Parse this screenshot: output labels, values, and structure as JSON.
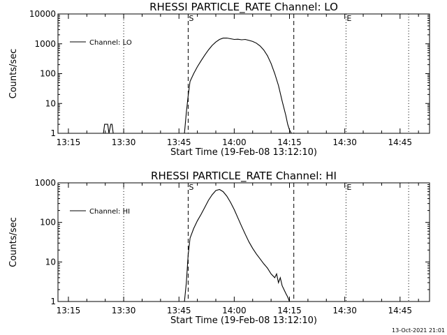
{
  "chart_data": [
    {
      "type": "line",
      "title": "RHESSI PARTICLE_RATE Channel: LO",
      "xlabel": "Start Time (19-Feb-08 13:12:10)",
      "ylabel": "Counts/sec",
      "yscale": "log",
      "xlim": [
        "13:12:10",
        "14:53:00"
      ],
      "ylim": [
        1,
        10000
      ],
      "x_ticks": [
        "13:15",
        "13:30",
        "13:45",
        "14:00",
        "14:15",
        "14:30",
        "14:45"
      ],
      "y_ticks": [
        "1",
        "10",
        "100",
        "1000",
        "10000"
      ],
      "legend_position": "upper-left",
      "series": [
        {
          "name": "Channel: LO",
          "x": [
            "13:24:30",
            "13:24:50",
            "13:25:40",
            "13:26:00",
            "13:26:30",
            "13:26:50",
            "13:27:10",
            "13:27:30",
            "13:46:30",
            "13:47:00",
            "13:47:30",
            "13:48:00",
            "13:49:00",
            "13:50:00",
            "13:51:00",
            "13:52:00",
            "13:53:00",
            "13:54:00",
            "13:55:00",
            "13:56:00",
            "13:57:00",
            "13:58:00",
            "13:59:00",
            "14:00:00",
            "14:01:00",
            "14:02:00",
            "14:03:00",
            "14:04:00",
            "14:05:00",
            "14:06:00",
            "14:07:00",
            "14:08:00",
            "14:09:00",
            "14:10:00",
            "14:11:00",
            "14:12:00",
            "14:13:00",
            "14:14:00",
            "14:14:30",
            "14:15:00",
            "14:15:30",
            "14:16:00"
          ],
          "y": [
            1,
            2,
            2,
            1,
            2,
            2,
            1,
            1,
            1,
            5,
            18,
            55,
            100,
            170,
            270,
            420,
            620,
            880,
            1150,
            1400,
            1550,
            1560,
            1480,
            1400,
            1420,
            1360,
            1400,
            1300,
            1200,
            1050,
            850,
            620,
            400,
            220,
            100,
            40,
            12,
            4,
            2,
            1.3,
            1,
            1
          ]
        }
      ],
      "markers": [
        {
          "label": "S",
          "time": "13:47:30",
          "style": "dashed"
        },
        {
          "label": "",
          "time": "14:16:10",
          "style": "dashed"
        },
        {
          "label": "E",
          "time": "14:30:20",
          "style": "dotted"
        },
        {
          "label": "",
          "time": "13:30:00",
          "style": "dotted"
        },
        {
          "label": "",
          "time": "14:47:20",
          "style": "dotted"
        }
      ]
    },
    {
      "type": "line",
      "title": "RHESSI PARTICLE_RATE Channel: HI",
      "xlabel": "Start Time (19-Feb-08 13:12:10)",
      "ylabel": "Counts/sec",
      "yscale": "log",
      "xlim": [
        "13:12:10",
        "14:53:00"
      ],
      "ylim": [
        1,
        1000
      ],
      "x_ticks": [
        "13:15",
        "13:30",
        "13:45",
        "14:00",
        "14:15",
        "14:30",
        "14:45"
      ],
      "y_ticks": [
        "1",
        "10",
        "100",
        "1000"
      ],
      "legend_position": "upper-left",
      "series": [
        {
          "name": "Channel: HI",
          "x": [
            "13:46:30",
            "13:47:00",
            "13:47:30",
            "13:48:00",
            "13:49:00",
            "13:50:00",
            "13:51:00",
            "13:52:00",
            "13:53:00",
            "13:54:00",
            "13:55:00",
            "13:56:00",
            "13:57:00",
            "13:58:00",
            "13:59:00",
            "14:00:00",
            "14:01:00",
            "14:02:00",
            "14:03:00",
            "14:04:00",
            "14:05:00",
            "14:06:00",
            "14:07:00",
            "14:08:00",
            "14:09:00",
            "14:10:00",
            "14:11:00",
            "14:11:30",
            "14:12:00",
            "14:12:30",
            "14:13:00",
            "14:13:30",
            "14:14:00",
            "14:14:30",
            "14:15:00"
          ],
          "y": [
            1,
            3,
            15,
            40,
            70,
            110,
            160,
            240,
            360,
            500,
            640,
            680,
            600,
            460,
            320,
            210,
            130,
            80,
            50,
            32,
            22,
            16,
            12,
            9,
            7,
            5,
            4,
            5,
            3,
            4,
            2.5,
            2,
            1.6,
            1.3,
            1
          ]
        }
      ],
      "markers": [
        {
          "label": "S",
          "time": "13:47:30",
          "style": "dashed"
        },
        {
          "label": "",
          "time": "14:16:10",
          "style": "dashed"
        },
        {
          "label": "E",
          "time": "14:30:20",
          "style": "dotted"
        },
        {
          "label": "",
          "time": "13:30:00",
          "style": "dotted"
        },
        {
          "label": "",
          "time": "14:47:20",
          "style": "dotted"
        }
      ]
    }
  ],
  "timestamp": "13-Oct-2021 21:01"
}
